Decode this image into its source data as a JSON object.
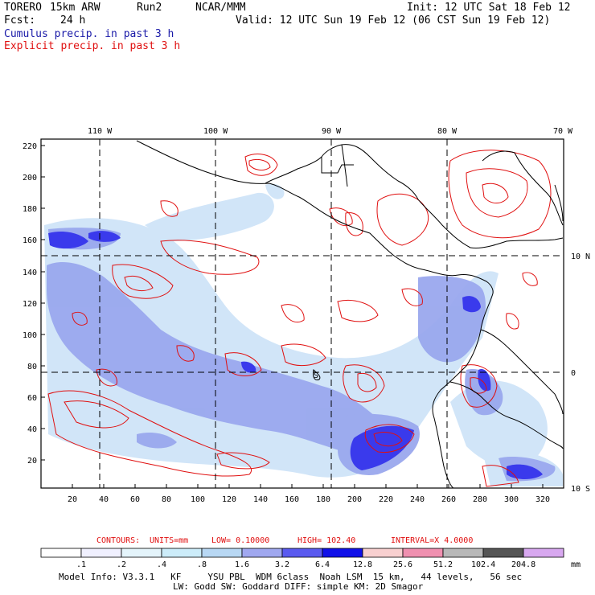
{
  "header": {
    "model": "TORERO",
    "resolution": "15km ARW",
    "run": "Run2",
    "org": "NCAR/MMM",
    "init": "Init: 12 UTC Sat 18 Feb 12",
    "fcst_label": "Fcst:",
    "fcst_value": "24 h",
    "valid": "Valid: 12 UTC Sun 19 Feb 12 (06 CST Sun 19 Feb 12)",
    "cumulus_title": "Cumulus precip. in past 3 h",
    "explicit_title": "Explicit precip. in past 3 h"
  },
  "map": {
    "lon_labels": [
      "110 W",
      "100 W",
      "90 W",
      "80 W",
      "70 W"
    ],
    "lat_labels": [
      "10 N",
      "0",
      "10 S"
    ],
    "y_ticks": [
      "220",
      "200",
      "180",
      "160",
      "140",
      "120",
      "100",
      "80",
      "60",
      "40",
      "20"
    ],
    "x_ticks": [
      "20",
      "40",
      "60",
      "80",
      "100",
      "120",
      "140",
      "160",
      "180",
      "200",
      "220",
      "240",
      "260",
      "280",
      "300",
      "320"
    ],
    "marker": "S"
  },
  "contours": {
    "contours_label": "CONTOURS:",
    "units": "UNITS=mm",
    "low": "LOW= 0.10000",
    "high": "HIGH= 102.40",
    "interval": "INTERVAL=X 4.0000"
  },
  "colorbar": {
    "labels": [
      ".1",
      ".2",
      ".4",
      ".8",
      "1.6",
      "3.2",
      "6.4",
      "12.8",
      "25.6",
      "51.2",
      "102.4",
      "204.8"
    ],
    "units": "mm",
    "colors": [
      "#ffffff",
      "#f0f0ff",
      "#e4f4fb",
      "#ccecf9",
      "#b8d8f4",
      "#a0a8f0",
      "#5a5af0",
      "#1010e8",
      "#f8d0d0",
      "#f090b0",
      "#b8b8b8",
      "#555555",
      "#d8a8f0"
    ]
  },
  "model_info": {
    "line1": "Model Info: V3.3.1   KF     YSU PBL  WDM 6class  Noah LSM  15 km,   44 levels,   56 sec",
    "line2": "LW: Godd SW: Goddard DIFF: simple KM: 2D Smagor"
  }
}
